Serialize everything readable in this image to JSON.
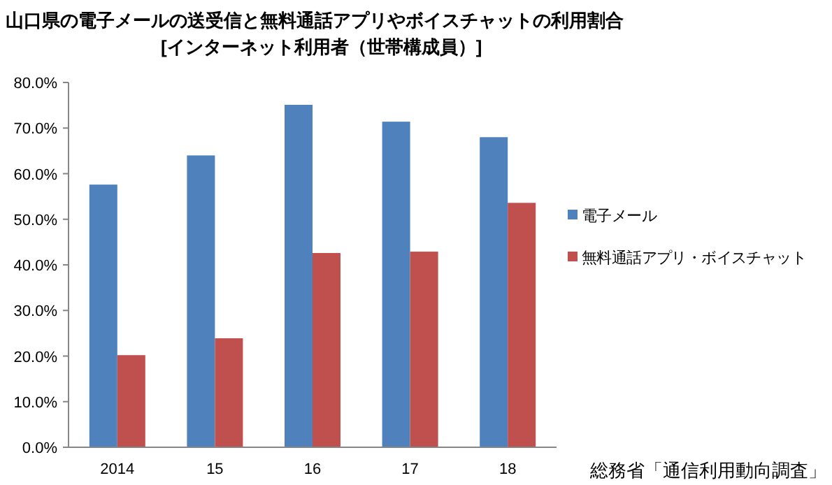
{
  "chart_data": {
    "type": "bar",
    "title": "山口県の電子メールの送受信と無料通話アプリやボイスチャットの利用割合",
    "subtitle": "[インターネット利用者（世帯構成員）]",
    "annotations": [
      "総務省「通信利用動向調査」"
    ],
    "categories": [
      "2014",
      "15",
      "16",
      "17",
      "18"
    ],
    "series": [
      {
        "name": "電子メール",
        "color": "#4f81bd",
        "values": [
          57.6,
          64.0,
          75.1,
          71.4,
          68.0
        ]
      },
      {
        "name": "無料通話アプリ・ボイスチャット",
        "color": "#c0504d",
        "values": [
          20.2,
          23.9,
          42.6,
          42.9,
          53.6
        ]
      }
    ],
    "ylim": [
      0,
      80
    ],
    "yticks": [
      {
        "value": 0,
        "label": "0.0%"
      },
      {
        "value": 10,
        "label": "10.0%"
      },
      {
        "value": 20,
        "label": "20.0%"
      },
      {
        "value": 30,
        "label": "30.0%"
      },
      {
        "value": 40,
        "label": "40.0%"
      },
      {
        "value": 50,
        "label": "50.0%"
      },
      {
        "value": 60,
        "label": "60.0%"
      },
      {
        "value": 70,
        "label": "70.0%"
      },
      {
        "value": 80,
        "label": "80.0%"
      }
    ],
    "grid": false,
    "legend": "right"
  }
}
